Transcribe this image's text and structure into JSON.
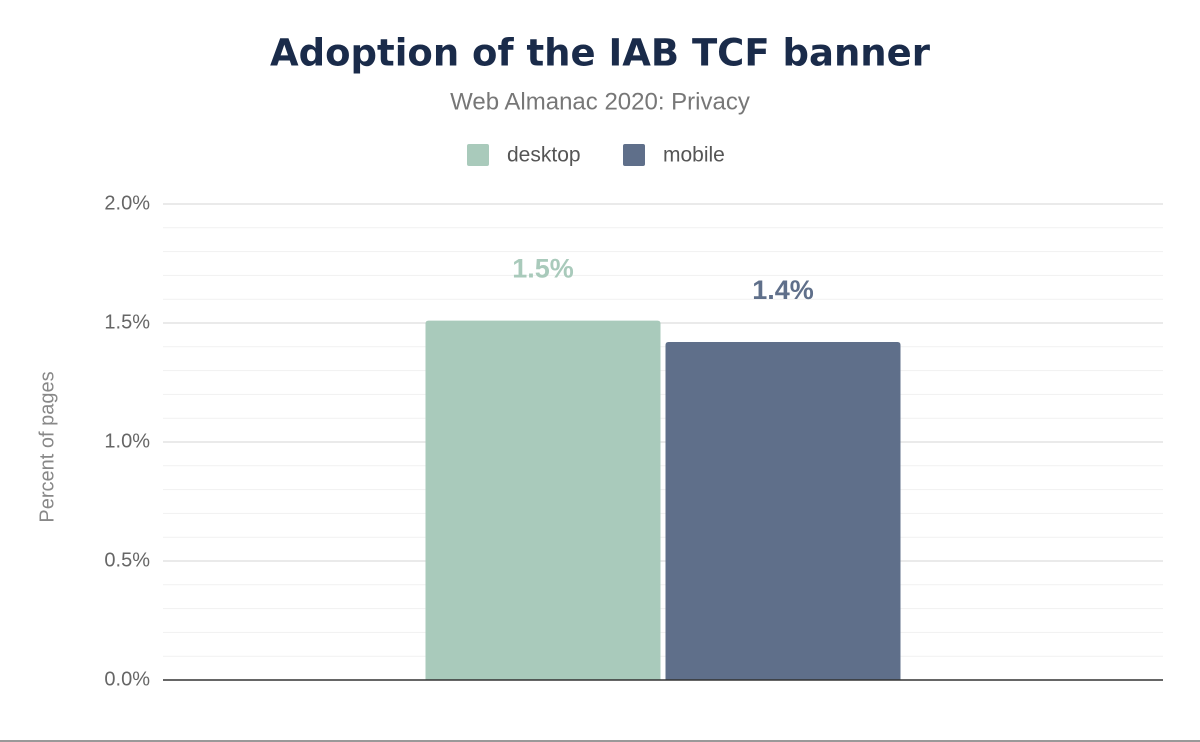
{
  "chart_data": {
    "type": "bar",
    "title": "Adoption of the IAB TCF banner",
    "subtitle": "Web Almanac 2020: Privacy",
    "y_axis_label": "Percent of pages",
    "categories": [
      null
    ],
    "series": [
      {
        "name": "desktop",
        "color": "#a9cabb",
        "values": [
          1.51
        ],
        "value_labels": [
          "1.5%"
        ]
      },
      {
        "name": "mobile",
        "color": "#5f6f8a",
        "values": [
          1.42
        ],
        "value_labels": [
          "1.4%"
        ]
      }
    ],
    "ylim": [
      0,
      2
    ],
    "yticks": [
      {
        "value": 0,
        "label": "0.0%"
      },
      {
        "value": 0.5,
        "label": "0.5%"
      },
      {
        "value": 1,
        "label": "1.0%"
      },
      {
        "value": 1.5,
        "label": "1.5%"
      },
      {
        "value": 2,
        "label": "2.0%"
      }
    ],
    "minor_yticks": [
      0.1,
      0.2,
      0.3,
      0.4,
      0.6,
      0.7,
      0.8,
      0.9,
      1.1,
      1.2,
      1.3,
      1.4,
      1.6,
      1.7,
      1.8,
      1.9
    ],
    "grid": true,
    "legend": "top"
  }
}
